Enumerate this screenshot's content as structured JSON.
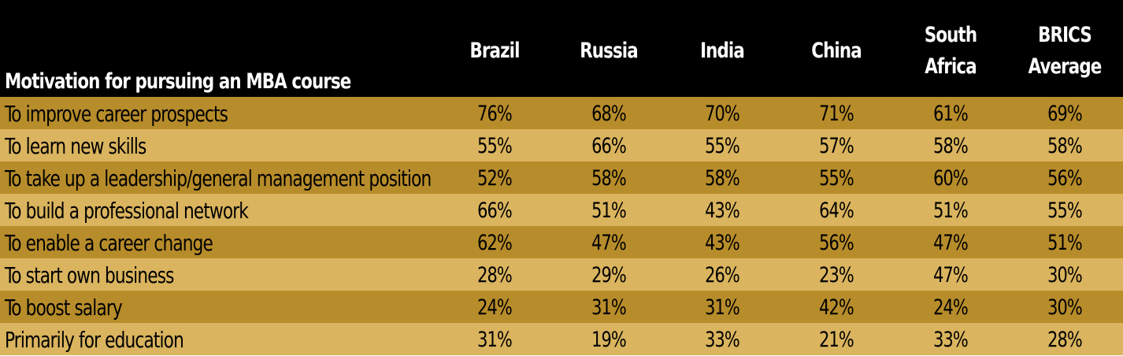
{
  "chart_data": {
    "type": "table",
    "row_header": "Motivation for pursuing an MBA course",
    "columns": [
      "Brazil",
      "Russia",
      "India",
      "China",
      "South Africa",
      "BRICS\nAverage"
    ],
    "rows": [
      {
        "label": "To improve career prospects",
        "values": [
          "76%",
          "68%",
          "70%",
          "71%",
          "61%",
          "69%"
        ]
      },
      {
        "label": "To learn new skills",
        "values": [
          "55%",
          "66%",
          "55%",
          "57%",
          "58%",
          "58%"
        ]
      },
      {
        "label": "To take up a leadership/general management position",
        "values": [
          "52%",
          "58%",
          "58%",
          "55%",
          "60%",
          "56%"
        ]
      },
      {
        "label": "To build a professional network",
        "values": [
          "66%",
          "51%",
          "43%",
          "64%",
          "51%",
          "55%"
        ]
      },
      {
        "label": "To enable a career change",
        "values": [
          "62%",
          "47%",
          "43%",
          "56%",
          "47%",
          "51%"
        ]
      },
      {
        "label": "To start own business",
        "values": [
          "28%",
          "29%",
          "26%",
          "23%",
          "47%",
          "30%"
        ]
      },
      {
        "label": "To boost salary",
        "values": [
          "24%",
          "31%",
          "31%",
          "42%",
          "24%",
          "30%"
        ]
      },
      {
        "label": "Primarily for education",
        "values": [
          "31%",
          "19%",
          "33%",
          "21%",
          "33%",
          "28%"
        ]
      }
    ]
  },
  "colors": {
    "header_bg": "#000000",
    "header_text": "#ffffff",
    "row_dark": "#b78c2a",
    "row_light": "#dab45e",
    "text": "#000000"
  }
}
